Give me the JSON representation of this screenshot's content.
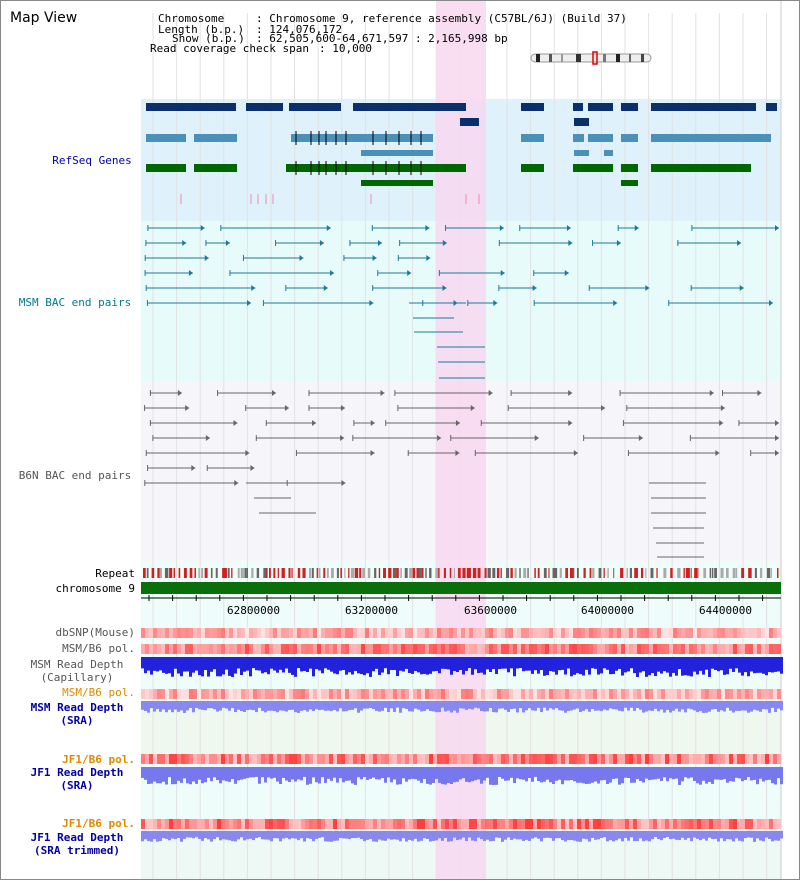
{
  "page": {
    "title": "Map View"
  },
  "header": {
    "chromosome_label": "Chromosome",
    "chromosome_value": ": Chromosome 9, reference assembly (C57BL/6J) (Build 37)",
    "length_label": "Length (b.p.)",
    "length_value": ": 124,076,172",
    "show_label": "Show (b.p.)",
    "show_value": ": 62,505,600-64,671,597 : 2,165,998 bp",
    "coverage_label": "Read coverage check span",
    "coverage_value": ": 10,000"
  },
  "tracks": {
    "refseq_genes": "RefSeq Genes",
    "msm_bac": "MSM BAC end pairs",
    "b6n_bac": "B6N BAC end pairs",
    "repeat": "Repeat",
    "chromosome": "chromosome 9",
    "dbsnp": "dbSNP(Mouse)",
    "msm_b6_pol_1": "MSM/B6 pol.",
    "msm_read_depth_cap_1": "MSM Read Depth",
    "msm_read_depth_cap_2": "(Capillary)",
    "msm_b6_pol_2": "MSM/B6 pol.",
    "msm_read_depth_sra_1": "MSM Read Depth",
    "msm_read_depth_sra_2": "(SRA)",
    "jf1_b6_pol_1": "JF1/B6 pol.",
    "jf1_read_depth_sra_1": "JF1 Read Depth",
    "jf1_read_depth_sra_2": "(SRA)",
    "jf1_b6_pol_2": "JF1/B6 pol.",
    "jf1_read_depth_trim_1": "JF1 Read Depth",
    "jf1_read_depth_trim_2": "(SRA trimmed)"
  },
  "axis": {
    "ticks": [
      "62800000",
      "63200000",
      "63600000",
      "64000000",
      "64400000"
    ]
  },
  "colors": {
    "refseq_blue": "#1f5fa0",
    "refseq_navy": "#0b2f6a",
    "refseq_green": "#006600",
    "msm_teal": "#1b7a9a",
    "b6n_gray": "#555555",
    "highlight": "#f8d8f0",
    "label_blue": "#0000a8",
    "label_teal": "#007a8a",
    "label_orange": "#e08a00"
  }
}
